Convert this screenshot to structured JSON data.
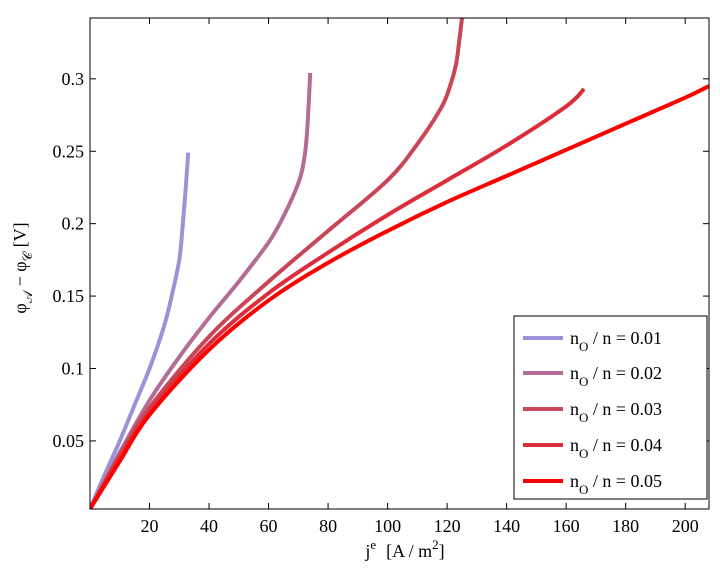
{
  "chart_data": {
    "type": "line",
    "xlabel": {
      "main": "j",
      "sup": "e",
      "units": "[A / m",
      "units_sup": "2",
      "units_close": "]"
    },
    "ylabel": {
      "phi1": "φ",
      "sub1": "𝒜",
      "minus": " − ",
      "phi2": "φ",
      "sub2": "𝒞",
      "units": "   [V]"
    },
    "xlim": [
      0,
      208
    ],
    "ylim": [
      0.003,
      0.342
    ],
    "xticks": [
      20,
      40,
      60,
      80,
      100,
      120,
      140,
      160,
      180,
      200
    ],
    "yticks": [
      0.05,
      0.1,
      0.15,
      0.2,
      0.25,
      0.3
    ],
    "ytick_labels": [
      "0.05",
      "0.1",
      "0.15",
      "0.2",
      "0.25",
      "0.3"
    ],
    "grid": false,
    "legend_position": "bottom-right",
    "series": [
      {
        "name": "0.01",
        "legend": {
          "n": "n",
          "sub": "O",
          "rest": " / n  =   0.01"
        },
        "color": "#9b93d6",
        "x": [
          0,
          5,
          10,
          15,
          20,
          25,
          28,
          30,
          31,
          32,
          33
        ],
        "y": [
          0.003,
          0.027,
          0.05,
          0.075,
          0.1,
          0.13,
          0.155,
          0.175,
          0.195,
          0.22,
          0.249
        ]
      },
      {
        "name": "0.02",
        "legend": {
          "n": "n",
          "sub": "O",
          "rest": " / n  =   0.02"
        },
        "color": "#b46b94",
        "x": [
          0,
          10,
          20,
          30,
          40,
          50,
          60,
          65,
          70,
          72,
          73,
          74
        ],
        "y": [
          0.003,
          0.042,
          0.078,
          0.108,
          0.135,
          0.16,
          0.187,
          0.205,
          0.228,
          0.245,
          0.265,
          0.304
        ]
      },
      {
        "name": "0.03",
        "legend": {
          "n": "n",
          "sub": "O",
          "rest": " / n  =   0.03"
        },
        "color": "#c94656",
        "x": [
          0,
          10,
          20,
          40,
          60,
          80,
          100,
          110,
          118,
          121,
          123,
          124,
          125
        ],
        "y": [
          0.003,
          0.04,
          0.073,
          0.122,
          0.16,
          0.195,
          0.23,
          0.255,
          0.28,
          0.295,
          0.31,
          0.325,
          0.342
        ]
      },
      {
        "name": "0.04",
        "legend": {
          "n": "n",
          "sub": "O",
          "rest": " / n  =   0.04"
        },
        "color": "#dc2d3a",
        "x": [
          0,
          10,
          20,
          40,
          60,
          80,
          100,
          120,
          140,
          160,
          166
        ],
        "y": [
          0.003,
          0.038,
          0.07,
          0.117,
          0.152,
          0.18,
          0.206,
          0.23,
          0.254,
          0.281,
          0.293
        ]
      },
      {
        "name": "0.05",
        "legend": {
          "n": "n",
          "sub": "O",
          "rest": " / n  =   0.05"
        },
        "color": "#ff0000",
        "x": [
          0,
          10,
          20,
          40,
          60,
          80,
          100,
          120,
          140,
          160,
          180,
          200,
          208
        ],
        "y": [
          0.003,
          0.036,
          0.068,
          0.113,
          0.147,
          0.173,
          0.195,
          0.215,
          0.233,
          0.251,
          0.269,
          0.287,
          0.295
        ]
      }
    ]
  }
}
